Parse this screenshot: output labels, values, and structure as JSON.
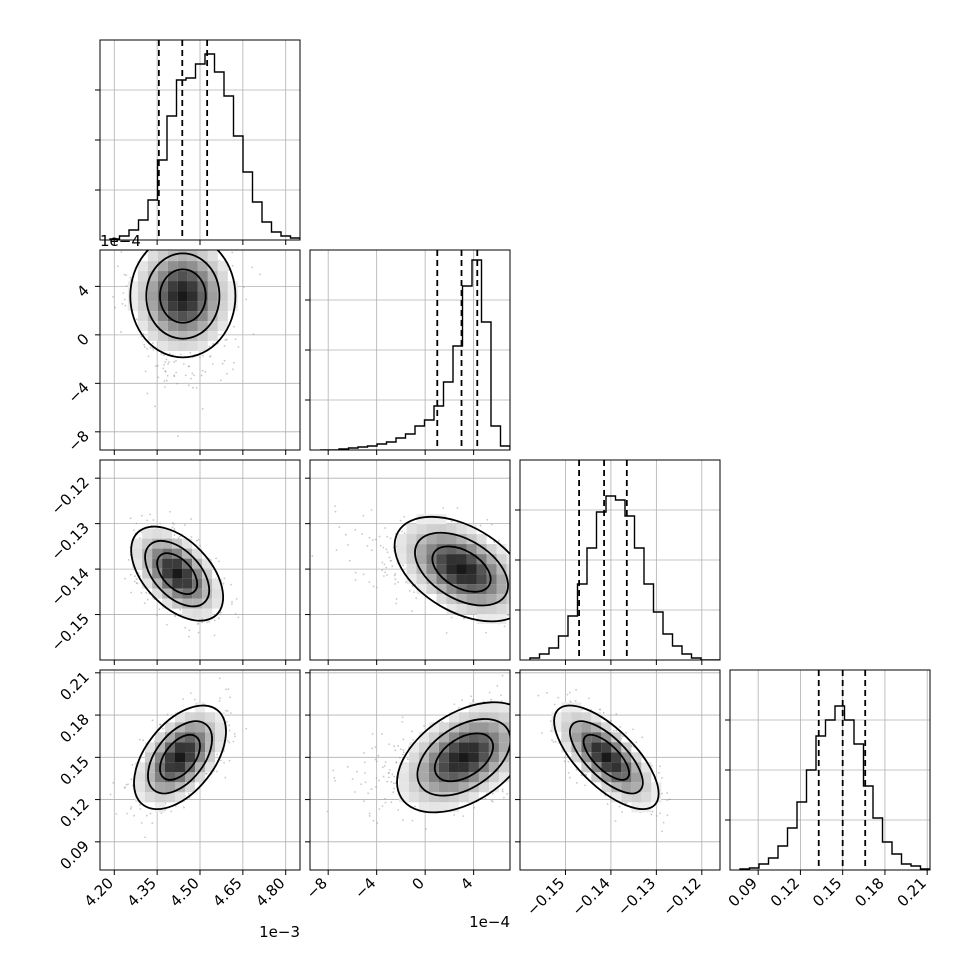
{
  "chart_data": {
    "type": "corner",
    "grid": true,
    "parameters": [
      {
        "range": [
          4.15,
          4.85
        ],
        "ticks": [
          4.2,
          4.35,
          4.5,
          4.65,
          4.8
        ],
        "tick_labels": [
          "4.20",
          "4.35",
          "4.50",
          "4.65",
          "4.80"
        ],
        "offset_label": "1e−3"
      },
      {
        "range": [
          -9.5,
          7.0
        ],
        "ticks": [
          -8,
          -4,
          0,
          4
        ],
        "tick_labels": [
          "−8",
          "−4",
          "0",
          "4"
        ],
        "offset_label": "1e−4"
      },
      {
        "range": [
          -0.16,
          -0.116
        ],
        "ticks": [
          -0.15,
          -0.14,
          -0.13,
          -0.12
        ],
        "tick_labels": [
          "−0.15",
          "−0.14",
          "−0.13",
          "−0.12"
        ]
      },
      {
        "range": [
          0.07,
          0.212
        ],
        "ticks": [
          0.09,
          0.12,
          0.15,
          0.18,
          0.21
        ],
        "tick_labels": [
          "0.09",
          "0.12",
          "0.15",
          "0.18",
          "0.21"
        ]
      }
    ],
    "hist_quantiles": [
      [
        4.356,
        4.438,
        4.525
      ],
      [
        1.0,
        3.0,
        4.3
      ],
      [
        -0.147,
        -0.1415,
        -0.1365
      ],
      [
        0.133,
        0.15,
        0.166
      ]
    ],
    "histograms": [
      [
        0.005,
        0.02,
        0.05,
        0.1,
        0.2,
        0.4,
        0.62,
        0.8,
        0.81,
        0.88,
        0.93,
        0.84,
        0.72,
        0.52,
        0.34,
        0.19,
        0.09,
        0.04,
        0.02,
        0.01
      ],
      [
        0.0,
        0.0,
        0.005,
        0.01,
        0.015,
        0.02,
        0.03,
        0.04,
        0.06,
        0.08,
        0.12,
        0.15,
        0.22,
        0.34,
        0.52,
        0.82,
        0.95,
        0.64,
        0.12,
        0.02
      ],
      [
        0.01,
        0.03,
        0.06,
        0.12,
        0.22,
        0.38,
        0.56,
        0.74,
        0.82,
        0.8,
        0.72,
        0.56,
        0.38,
        0.24,
        0.13,
        0.07,
        0.03,
        0.01,
        0.0,
        0.0
      ],
      [
        0.005,
        0.01,
        0.03,
        0.06,
        0.12,
        0.21,
        0.34,
        0.5,
        0.67,
        0.75,
        0.82,
        0.75,
        0.63,
        0.42,
        0.26,
        0.14,
        0.08,
        0.03,
        0.02,
        0.005
      ]
    ],
    "pairs": [
      {
        "x": 0,
        "y": 1,
        "mean": [
          4.44,
          3.2
        ],
        "sd": [
          0.08,
          2.2
        ],
        "corr": 0.0
      },
      {
        "x": 0,
        "y": 2,
        "mean": [
          4.42,
          -0.141
        ],
        "sd": [
          0.07,
          0.0045
        ],
        "corr": -0.5
      },
      {
        "x": 1,
        "y": 2,
        "mean": [
          3.0,
          -0.14
        ],
        "sd": [
          2.4,
          0.005
        ],
        "corr": -0.45
      },
      {
        "x": 0,
        "y": 3,
        "mean": [
          4.43,
          0.15
        ],
        "sd": [
          0.07,
          0.016
        ],
        "corr": 0.5
      },
      {
        "x": 1,
        "y": 3,
        "mean": [
          3.2,
          0.15
        ],
        "sd": [
          2.4,
          0.017
        ],
        "corr": 0.45
      },
      {
        "x": 2,
        "y": 3,
        "mean": [
          -0.141,
          0.15
        ],
        "sd": [
          0.005,
          0.016
        ],
        "corr": -0.7
      }
    ]
  },
  "colors": {
    "axis": "#000000",
    "grid": "#b0b0b0",
    "line": "#000000",
    "points": "#9a9a9a"
  }
}
